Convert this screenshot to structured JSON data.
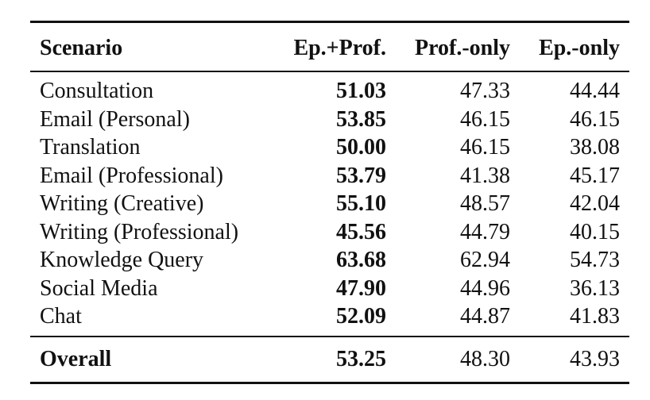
{
  "table": {
    "headers": {
      "scenario": "Scenario",
      "ep_prof": "Ep.+Prof.",
      "prof_only": "Prof.-only",
      "ep_only": "Ep.-only"
    },
    "rows": [
      {
        "scenario": "Consultation",
        "ep_prof": "51.03",
        "prof_only": "47.33",
        "ep_only": "44.44"
      },
      {
        "scenario": "Email (Personal)",
        "ep_prof": "53.85",
        "prof_only": "46.15",
        "ep_only": "46.15"
      },
      {
        "scenario": "Translation",
        "ep_prof": "50.00",
        "prof_only": "46.15",
        "ep_only": "38.08"
      },
      {
        "scenario": "Email (Professional)",
        "ep_prof": "53.79",
        "prof_only": "41.38",
        "ep_only": "45.17"
      },
      {
        "scenario": "Writing (Creative)",
        "ep_prof": "55.10",
        "prof_only": "48.57",
        "ep_only": "42.04"
      },
      {
        "scenario": "Writing (Professional)",
        "ep_prof": "45.56",
        "prof_only": "44.79",
        "ep_only": "40.15"
      },
      {
        "scenario": "Knowledge Query",
        "ep_prof": "63.68",
        "prof_only": "62.94",
        "ep_only": "54.73"
      },
      {
        "scenario": "Social Media",
        "ep_prof": "47.90",
        "prof_only": "44.96",
        "ep_only": "36.13"
      },
      {
        "scenario": "Chat",
        "ep_prof": "52.09",
        "prof_only": "44.87",
        "ep_only": "41.83"
      }
    ],
    "overall": {
      "scenario": "Overall",
      "ep_prof": "53.25",
      "prof_only": "48.30",
      "ep_only": "43.93"
    }
  }
}
